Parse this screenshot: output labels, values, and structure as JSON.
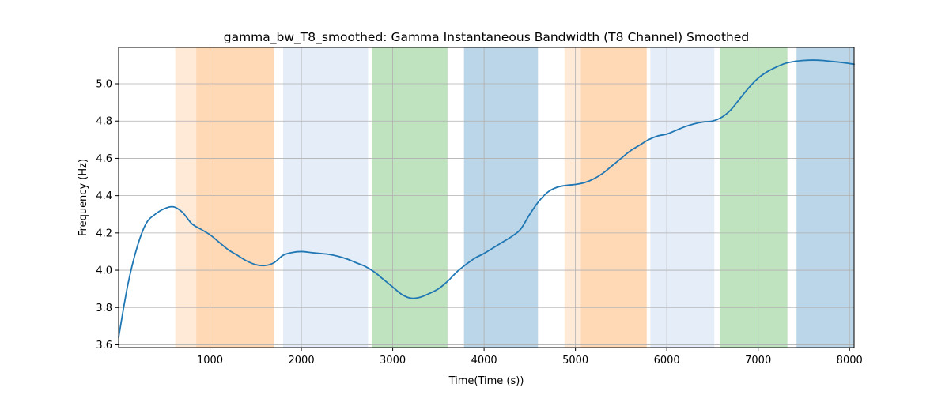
{
  "chart_data": {
    "type": "line",
    "title": "gamma_bw_T8_smoothed: Gamma Instantaneous Bandwidth (T8 Channel) Smoothed",
    "xlabel": "Time(Time (s))",
    "ylabel": "Frequency (Hz)",
    "xlim": [
      0,
      8050
    ],
    "ylim": [
      3.585,
      5.195
    ],
    "xticks": [
      1000,
      2000,
      3000,
      4000,
      5000,
      6000,
      7000,
      8000
    ],
    "xtick_labels": [
      "1000",
      "2000",
      "3000",
      "4000",
      "5000",
      "6000",
      "7000",
      "8000"
    ],
    "yticks": [
      3.6,
      3.8,
      4.0,
      4.2,
      4.4,
      4.6,
      4.8,
      5.0
    ],
    "ytick_labels": [
      "3.6",
      "3.8",
      "4.0",
      "4.2",
      "4.4",
      "4.6",
      "4.8",
      "5.0"
    ],
    "grid": true,
    "line_color": "#1f77b4",
    "bands": [
      {
        "x0": 620,
        "x1": 850,
        "color": "#ff7f0e",
        "opacity": 0.16
      },
      {
        "x0": 850,
        "x1": 1700,
        "color": "#ff7f0e",
        "opacity": 0.3
      },
      {
        "x0": 1800,
        "x1": 2730,
        "color": "#aec7e8",
        "opacity": 0.32
      },
      {
        "x0": 2770,
        "x1": 3600,
        "color": "#2ca02c",
        "opacity": 0.3
      },
      {
        "x0": 3780,
        "x1": 4590,
        "color": "#1f77b4",
        "opacity": 0.3
      },
      {
        "x0": 4880,
        "x1": 5060,
        "color": "#ff7f0e",
        "opacity": 0.16
      },
      {
        "x0": 5060,
        "x1": 5780,
        "color": "#ff7f0e",
        "opacity": 0.3
      },
      {
        "x0": 5820,
        "x1": 6520,
        "color": "#aec7e8",
        "opacity": 0.32
      },
      {
        "x0": 6580,
        "x1": 7320,
        "color": "#2ca02c",
        "opacity": 0.3
      },
      {
        "x0": 7420,
        "x1": 8050,
        "color": "#1f77b4",
        "opacity": 0.3
      }
    ],
    "series": [
      {
        "x": [
          0,
          100,
          200,
          300,
          400,
          500,
          600,
          700,
          800,
          900,
          1000,
          1100,
          1200,
          1300,
          1400,
          1500,
          1600,
          1700,
          1800,
          1900,
          2000,
          2100,
          2200,
          2300,
          2400,
          2500,
          2600,
          2700,
          2800,
          2900,
          3000,
          3100,
          3200,
          3300,
          3400,
          3500,
          3600,
          3700,
          3800,
          3900,
          4000,
          4100,
          4200,
          4300,
          4400,
          4500,
          4600,
          4700,
          4800,
          4900,
          5000,
          5100,
          5200,
          5300,
          5400,
          5500,
          5600,
          5700,
          5800,
          5900,
          6000,
          6100,
          6200,
          6300,
          6400,
          6500,
          6600,
          6700,
          6800,
          6900,
          7000,
          7100,
          7200,
          7300,
          7400,
          7500,
          7600,
          7700,
          7800,
          7900,
          8050
        ],
        "y": [
          3.64,
          3.92,
          4.12,
          4.25,
          4.3,
          4.33,
          4.34,
          4.31,
          4.25,
          4.22,
          4.19,
          4.15,
          4.11,
          4.08,
          4.05,
          4.03,
          4.025,
          4.04,
          4.08,
          4.095,
          4.1,
          4.095,
          4.09,
          4.085,
          4.075,
          4.06,
          4.04,
          4.02,
          3.99,
          3.95,
          3.91,
          3.87,
          3.85,
          3.855,
          3.875,
          3.9,
          3.94,
          3.99,
          4.03,
          4.065,
          4.09,
          4.12,
          4.15,
          4.18,
          4.22,
          4.3,
          4.37,
          4.42,
          4.445,
          4.455,
          4.46,
          4.47,
          4.49,
          4.52,
          4.56,
          4.6,
          4.64,
          4.67,
          4.7,
          4.72,
          4.73,
          4.75,
          4.77,
          4.785,
          4.795,
          4.8,
          4.82,
          4.86,
          4.92,
          4.98,
          5.03,
          5.065,
          5.09,
          5.11,
          5.12,
          5.125,
          5.127,
          5.125,
          5.12,
          5.115,
          5.105
        ]
      }
    ]
  }
}
